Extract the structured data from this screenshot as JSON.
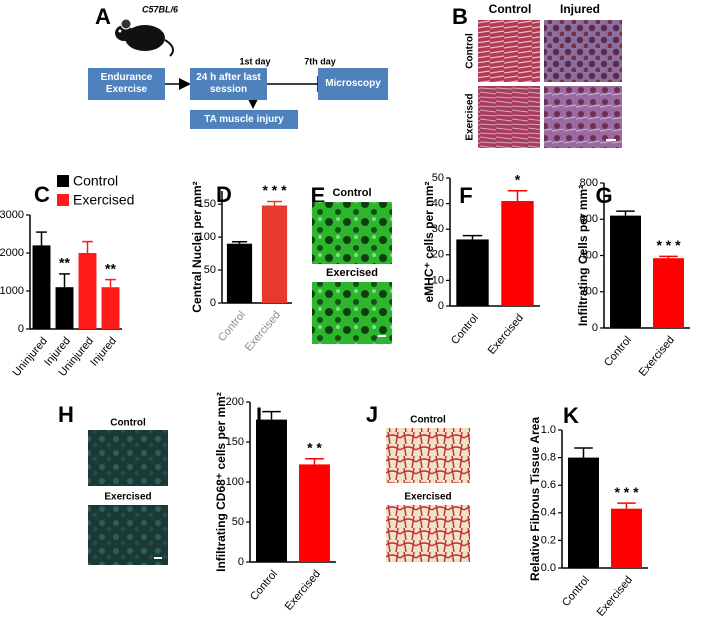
{
  "diagram": {
    "panel": "A",
    "strain": "C57BL/6",
    "boxes": [
      "Endurance Exercise",
      "24 h after last session",
      "Microscopy",
      "TA muscle injury"
    ],
    "timepoints": [
      "1st day",
      "7th day"
    ]
  },
  "images": [
    {
      "panel": "B",
      "columns": [
        "Control",
        "Injured"
      ],
      "rows": [
        "Control",
        "Exercised"
      ]
    },
    {
      "panel": "E",
      "labels": [
        "Control",
        "Exercised"
      ]
    },
    {
      "panel": "H",
      "labels": [
        "Control",
        "Exercised"
      ]
    },
    {
      "panel": "J",
      "labels": [
        "Control",
        "Exercised"
      ]
    }
  ],
  "chart_data": [
    {
      "type": "bar",
      "panel": "C",
      "categories": [
        "Uninjured",
        "Injured",
        "Uninjured",
        "Injured"
      ],
      "series": [
        {
          "name": "Control",
          "color": "#000000",
          "values": [
            2200,
            1100,
            null,
            null
          ],
          "errors": [
            350,
            350,
            null,
            null
          ]
        },
        {
          "name": "Exercised",
          "color": "#ff1a1a",
          "values": [
            null,
            null,
            2000,
            1100
          ],
          "errors": [
            null,
            null,
            300,
            200
          ]
        }
      ],
      "annotations": [
        null,
        "**",
        null,
        "**"
      ],
      "ylim": [
        0,
        3000
      ],
      "yticks": [
        0,
        1000,
        2000,
        3000
      ],
      "legend": "top-left"
    },
    {
      "type": "bar",
      "panel": "D",
      "ylabel": "Central Nuclei per mm²",
      "categories": [
        "Control",
        "Exercised"
      ],
      "values": [
        90,
        148
      ],
      "errors": [
        3,
        6
      ],
      "colors": [
        "#000000",
        "#e8392e"
      ],
      "annotations": [
        null,
        "* * *"
      ],
      "ylim": [
        0,
        170
      ],
      "yticks": [
        0,
        50,
        100,
        150
      ],
      "category_color": "#8c8c8c"
    },
    {
      "type": "bar",
      "panel": "F",
      "ylabel": "eMHC⁺ cells per mm²",
      "categories": [
        "Control",
        "Exercised"
      ],
      "values": [
        26,
        41
      ],
      "errors": [
        1.5,
        4
      ],
      "colors": [
        "#000000",
        "#ff0000"
      ],
      "annotations": [
        null,
        "*"
      ],
      "ylim": [
        0,
        50
      ],
      "yticks": [
        0,
        10,
        20,
        30,
        40,
        50
      ]
    },
    {
      "type": "bar",
      "panel": "G",
      "ylabel": "Infiltrating Cells per mm²",
      "categories": [
        "Control",
        "Exercised"
      ],
      "values": [
        620,
        385
      ],
      "errors": [
        25,
        10
      ],
      "colors": [
        "#000000",
        "#ff0000"
      ],
      "annotations": [
        null,
        "* * *"
      ],
      "ylim": [
        0,
        800
      ],
      "yticks": [
        0,
        200,
        400,
        600,
        800
      ]
    },
    {
      "type": "bar",
      "panel": "I",
      "ylabel": "Infiltrating CD68⁺ cells per mm²",
      "categories": [
        "Control",
        "Exercised"
      ],
      "values": [
        178,
        122
      ],
      "errors": [
        10,
        7
      ],
      "colors": [
        "#000000",
        "#ff0000"
      ],
      "annotations": [
        null,
        "* *"
      ],
      "ylim": [
        0,
        200
      ],
      "yticks": [
        0,
        50,
        100,
        150,
        200
      ]
    },
    {
      "type": "bar",
      "panel": "K",
      "ylabel": "Relative Fibrous Tissue Area",
      "categories": [
        "Control",
        "Exercised"
      ],
      "values": [
        0.8,
        0.43
      ],
      "errors": [
        0.07,
        0.04
      ],
      "colors": [
        "#000000",
        "#ff0000"
      ],
      "annotations": [
        null,
        "* * *"
      ],
      "ylim": [
        0,
        1
      ],
      "yticks": [
        {
          "value": 0,
          "label": "0.0"
        },
        {
          "value": 0.2,
          "label": "0.2"
        },
        {
          "value": 0.4,
          "label": "0.4"
        },
        {
          "value": 0.6,
          "label": "0.6"
        },
        {
          "value": 0.8,
          "label": "0.8"
        },
        {
          "value": 1,
          "label": "1.0"
        }
      ]
    }
  ]
}
